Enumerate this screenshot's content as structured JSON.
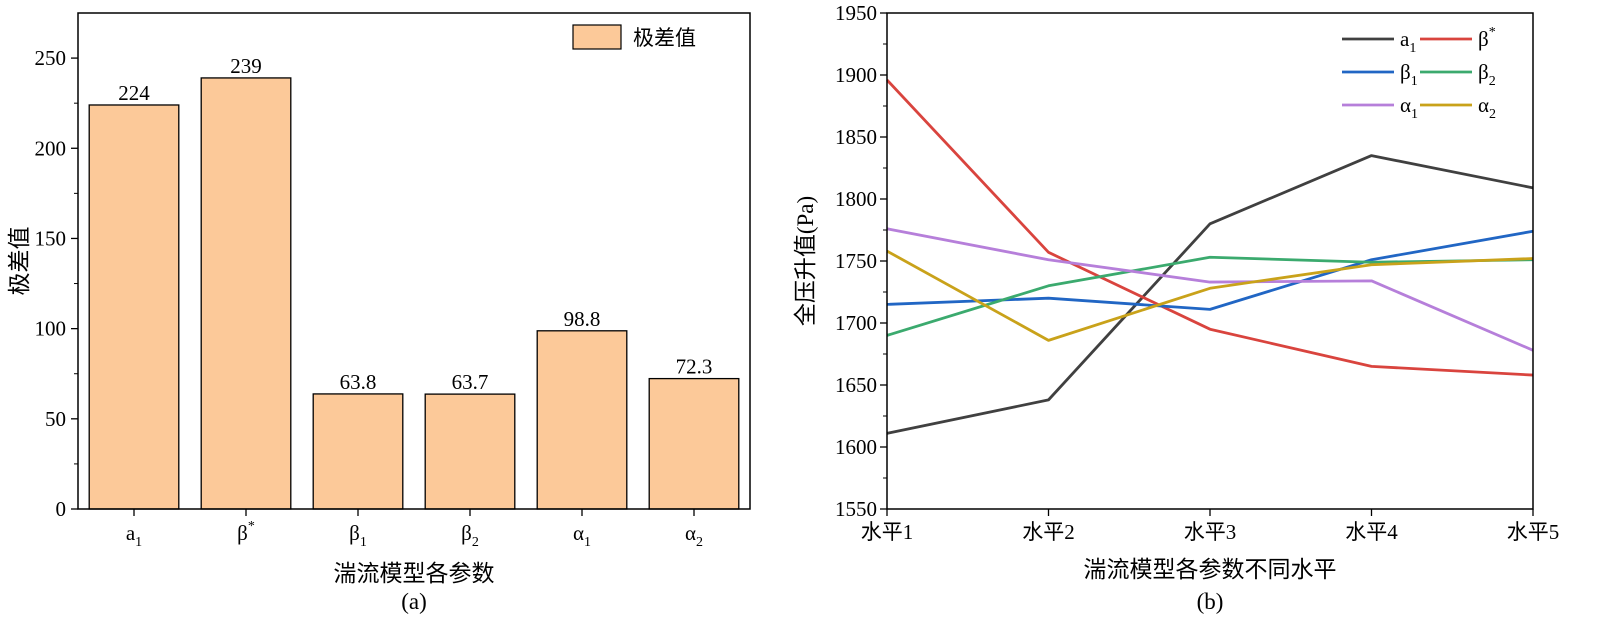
{
  "chart_data": [
    {
      "type": "bar",
      "panel_label": "(a)",
      "title": "",
      "xlabel": "湍流模型各参数",
      "ylabel": "极差值",
      "ylim": [
        0,
        275
      ],
      "yticks": [
        0,
        50,
        100,
        150,
        200,
        250
      ],
      "categories": [
        {
          "base": "a",
          "sub": "1",
          "sup": ""
        },
        {
          "base": "β",
          "sub": "",
          "sup": "*"
        },
        {
          "base": "β",
          "sub": "1",
          "sup": ""
        },
        {
          "base": "β",
          "sub": "2",
          "sup": ""
        },
        {
          "base": "α",
          "sub": "1",
          "sup": ""
        },
        {
          "base": "α",
          "sub": "2",
          "sup": ""
        }
      ],
      "series": [
        {
          "name": "极差值",
          "values": [
            224,
            239,
            63.8,
            63.7,
            98.8,
            72.3
          ],
          "labels": [
            "224",
            "239",
            "63.8",
            "63.7",
            "98.8",
            "72.3"
          ],
          "color": "#FCC999"
        }
      ],
      "legend_position": "top-right"
    },
    {
      "type": "line",
      "panel_label": "(b)",
      "title": "",
      "xlabel": "湍流模型各参数不同水平",
      "ylabel": "全压升值(Pa)",
      "ylim": [
        1550,
        1950
      ],
      "yticks": [
        1550,
        1600,
        1650,
        1700,
        1750,
        1800,
        1850,
        1900,
        1950
      ],
      "categories": [
        "水平1",
        "水平2",
        "水平3",
        "水平4",
        "水平5"
      ],
      "series": [
        {
          "name": {
            "base": "a",
            "sub": "1",
            "sup": ""
          },
          "color": "#404040",
          "values": [
            1611,
            1638,
            1780,
            1835,
            1809
          ]
        },
        {
          "name": {
            "base": "β",
            "sub": "",
            "sup": "*"
          },
          "color": "#D9443E",
          "values": [
            1896,
            1757,
            1695,
            1665,
            1658
          ]
        },
        {
          "name": {
            "base": "β",
            "sub": "1",
            "sup": ""
          },
          "color": "#2166C4",
          "values": [
            1715,
            1720,
            1711,
            1751,
            1774
          ]
        },
        {
          "name": {
            "base": "β",
            "sub": "2",
            "sup": ""
          },
          "color": "#3BAA6E",
          "values": [
            1690,
            1730,
            1753,
            1749,
            1751
          ]
        },
        {
          "name": {
            "base": "α",
            "sub": "1",
            "sup": ""
          },
          "color": "#B67FDA",
          "values": [
            1776,
            1751,
            1733,
            1734,
            1678
          ]
        },
        {
          "name": {
            "base": "α",
            "sub": "2",
            "sup": ""
          },
          "color": "#C9A21A",
          "values": [
            1758,
            1686,
            1728,
            1747,
            1752
          ]
        }
      ],
      "legend_position": "top-right"
    }
  ]
}
